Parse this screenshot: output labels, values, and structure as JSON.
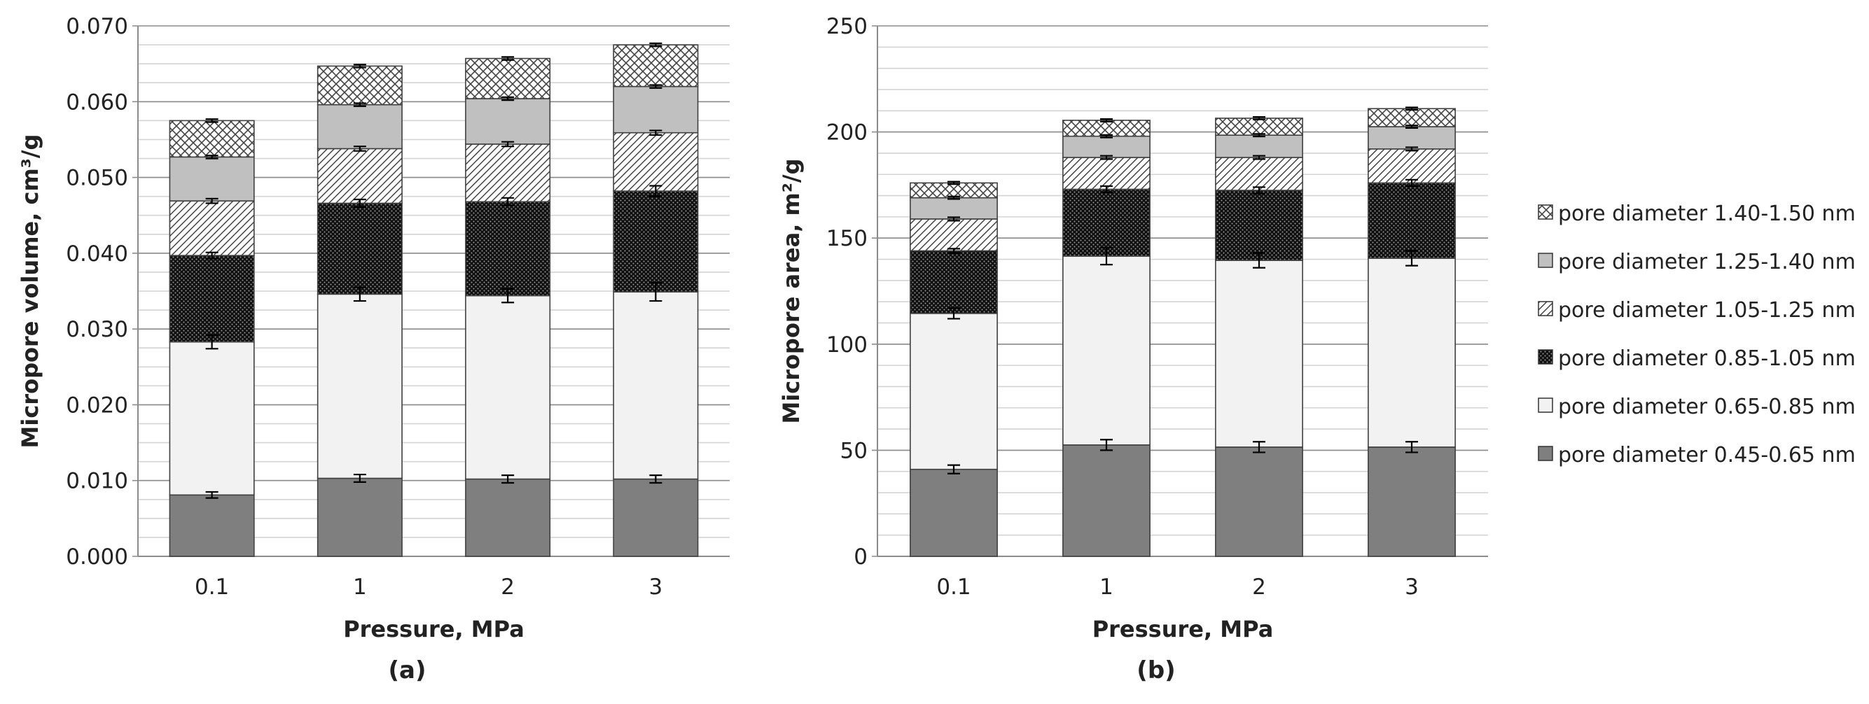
{
  "legend": [
    {
      "label": "pore diameter 1.40-1.50 nm",
      "pattern": "crosshatch"
    },
    {
      "label": "pore diameter 1.25-1.40 nm",
      "pattern": "gray"
    },
    {
      "label": "pore diameter 1.05-1.25 nm",
      "pattern": "diagonal"
    },
    {
      "label": "pore diameter 0.85-1.05 nm",
      "pattern": "dotted-dark"
    },
    {
      "label": "pore diameter 0.65-0.85 nm",
      "pattern": "light"
    },
    {
      "label": "pore diameter 0.45-0.65 nm",
      "pattern": "dark-gray"
    }
  ],
  "chart_data": [
    {
      "type": "bar",
      "stacked": true,
      "panel": "(a)",
      "title": "",
      "xlabel": "Pressure, MPa",
      "ylabel": "Micropore volume, cm³/g",
      "categories": [
        "0.1",
        "1",
        "2",
        "3"
      ],
      "ylim": [
        0,
        0.07
      ],
      "yticks": [
        "0.000",
        "0.010",
        "0.020",
        "0.030",
        "0.040",
        "0.050",
        "0.060",
        "0.070"
      ],
      "ytick_values": [
        0,
        0.01,
        0.02,
        0.03,
        0.04,
        0.05,
        0.06,
        0.07
      ],
      "minor_grid_step": 0.0025,
      "series": [
        {
          "name": "pore diameter 0.45-0.65 nm",
          "values": [
            0.0081,
            0.0103,
            0.0102,
            0.0102
          ],
          "errors": [
            0.0004,
            0.0005,
            0.0005,
            0.0005
          ]
        },
        {
          "name": "pore diameter 0.65-0.85 nm",
          "values": [
            0.0202,
            0.0243,
            0.0242,
            0.0247
          ],
          "errors": [
            0.0009,
            0.0009,
            0.0009,
            0.0012
          ]
        },
        {
          "name": "pore diameter 0.85-1.05 nm",
          "values": [
            0.0114,
            0.012,
            0.0124,
            0.0133
          ],
          "errors": [
            0.0004,
            0.0005,
            0.0005,
            0.0007
          ]
        },
        {
          "name": "pore diameter 1.05-1.25 nm",
          "values": [
            0.0072,
            0.0072,
            0.0076,
            0.0077
          ],
          "errors": [
            0.0003,
            0.0003,
            0.0003,
            0.0003
          ]
        },
        {
          "name": "pore diameter 1.25-1.40 nm",
          "values": [
            0.0058,
            0.0058,
            0.006,
            0.0061
          ],
          "errors": [
            0.0002,
            0.0002,
            0.0002,
            0.0002
          ]
        },
        {
          "name": "pore diameter 1.40-1.50 nm",
          "values": [
            0.0048,
            0.0051,
            0.0053,
            0.0055
          ],
          "errors": [
            0.0002,
            0.0002,
            0.0002,
            0.0002
          ]
        }
      ]
    },
    {
      "type": "bar",
      "stacked": true,
      "panel": "(b)",
      "title": "",
      "xlabel": "Pressure, MPa",
      "ylabel": "Micropore area, m²/g",
      "categories": [
        "0.1",
        "1",
        "2",
        "3"
      ],
      "ylim": [
        0,
        250
      ],
      "yticks": [
        "0",
        "50",
        "100",
        "150",
        "200",
        "250"
      ],
      "ytick_values": [
        0,
        50,
        100,
        150,
        200,
        250
      ],
      "minor_grid_step": 10,
      "series": [
        {
          "name": "pore diameter 0.45-0.65 nm",
          "values": [
            41,
            52.5,
            51.5,
            51.5
          ],
          "errors": [
            2,
            2.5,
            2.5,
            2.5
          ]
        },
        {
          "name": "pore diameter 0.65-0.85 nm",
          "values": [
            73.5,
            89,
            88,
            89
          ],
          "errors": [
            2.5,
            4,
            3.5,
            3.5
          ]
        },
        {
          "name": "pore diameter 0.85-1.05 nm",
          "values": [
            29.5,
            31.5,
            33,
            35.5
          ],
          "errors": [
            1,
            1.5,
            1.5,
            1.5
          ]
        },
        {
          "name": "pore diameter 1.05-1.25 nm",
          "values": [
            15,
            15,
            15.5,
            16
          ],
          "errors": [
            0.8,
            0.8,
            0.8,
            0.8
          ]
        },
        {
          "name": "pore diameter 1.25-1.40 nm",
          "values": [
            10,
            10,
            10.5,
            10.5
          ],
          "errors": [
            0.6,
            0.6,
            0.6,
            0.6
          ]
        },
        {
          "name": "pore diameter 1.40-1.50 nm",
          "values": [
            7,
            7.5,
            8,
            8.5
          ],
          "errors": [
            0.6,
            0.6,
            0.6,
            0.6
          ]
        }
      ]
    }
  ]
}
